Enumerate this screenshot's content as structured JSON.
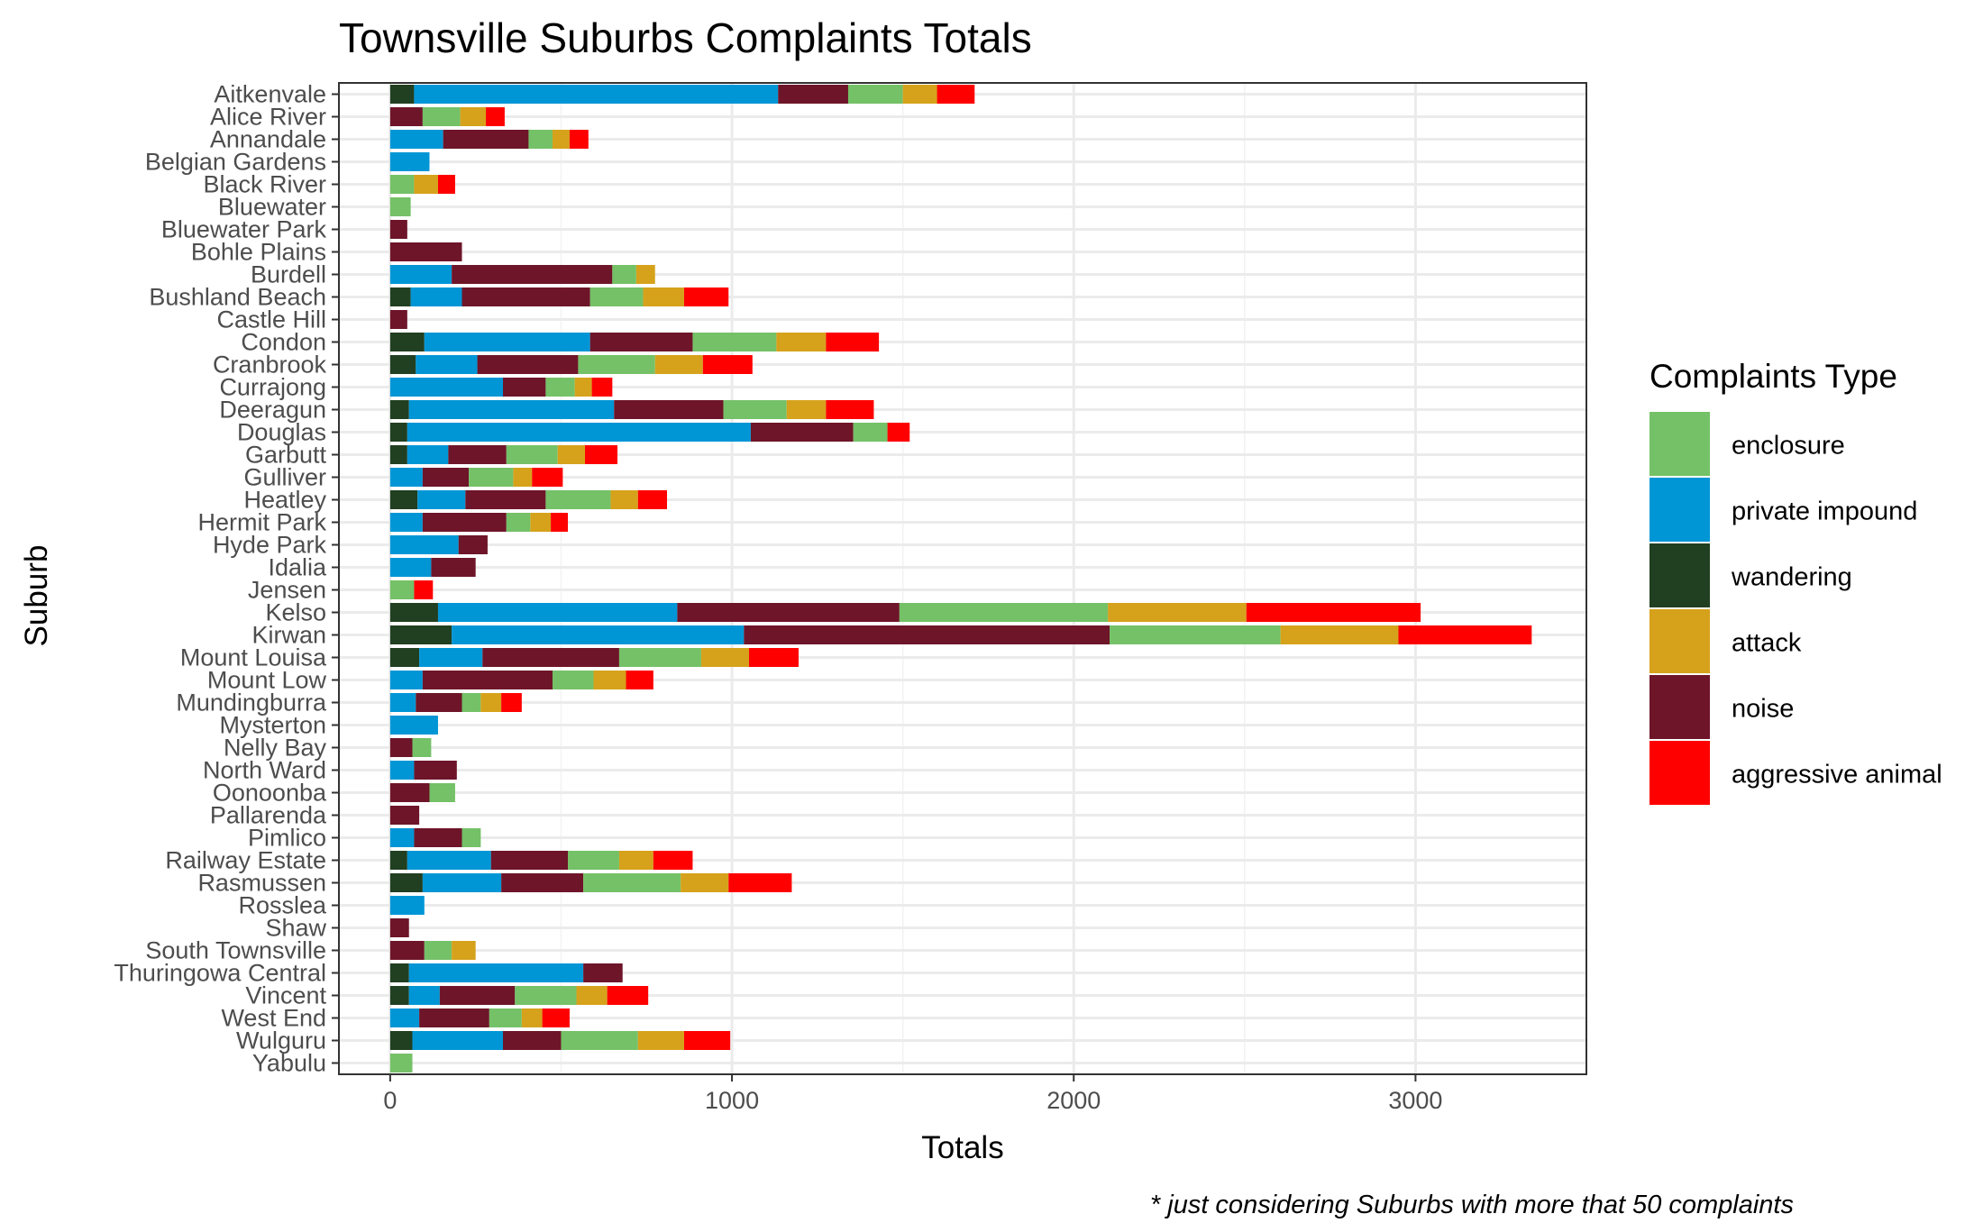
{
  "chart_data": {
    "type": "bar",
    "orientation": "horizontal",
    "stacked": true,
    "title": "Townsville Suburbs Complaints Totals",
    "xlabel": "Totals",
    "ylabel": "Suburb",
    "caption": "* just considering Suburbs with more that 50 complaints",
    "xlim": [
      -150,
      3500
    ],
    "xticks": [
      0,
      1000,
      2000,
      3000
    ],
    "grid": true,
    "legend": {
      "title": "Complaints Type",
      "placement": "right",
      "order": [
        "enclosure",
        "private impound",
        "wandering",
        "attack",
        "noise",
        "aggressive animal"
      ]
    },
    "stack_order": [
      "wandering",
      "private impound",
      "noise",
      "enclosure",
      "attack",
      "aggressive animal"
    ],
    "colors": {
      "enclosure": "#74c167",
      "private impound": "#0096d6",
      "wandering": "#213f21",
      "attack": "#d6a21b",
      "noise": "#6e1529",
      "aggressive animal": "#ff0000"
    },
    "categories": [
      "Aitkenvale",
      "Alice River",
      "Annandale",
      "Belgian Gardens",
      "Black River",
      "Bluewater",
      "Bluewater Park",
      "Bohle Plains",
      "Burdell",
      "Bushland Beach",
      "Castle Hill",
      "Condon",
      "Cranbrook",
      "Currajong",
      "Deeragun",
      "Douglas",
      "Garbutt",
      "Gulliver",
      "Heatley",
      "Hermit Park",
      "Hyde Park",
      "Idalia",
      "Jensen",
      "Kelso",
      "Kirwan",
      "Mount Louisa",
      "Mount Low",
      "Mundingburra",
      "Mysterton",
      "Nelly Bay",
      "North Ward",
      "Oonoonba",
      "Pallarenda",
      "Pimlico",
      "Railway Estate",
      "Rasmussen",
      "Rosslea",
      "Shaw",
      "South Townsville",
      "Thuringowa Central",
      "Vincent",
      "West End",
      "Wulguru",
      "Yabulu"
    ],
    "series": [
      {
        "name": "wandering",
        "values": [
          70,
          0,
          0,
          0,
          0,
          0,
          0,
          0,
          0,
          60,
          0,
          100,
          75,
          0,
          55,
          50,
          50,
          0,
          80,
          0,
          0,
          0,
          0,
          140,
          180,
          85,
          0,
          0,
          0,
          0,
          0,
          0,
          0,
          0,
          50,
          95,
          0,
          0,
          0,
          55,
          55,
          0,
          65,
          0
        ]
      },
      {
        "name": "private impound",
        "values": [
          1065,
          0,
          155,
          115,
          0,
          0,
          0,
          0,
          180,
          150,
          0,
          485,
          180,
          330,
          600,
          1005,
          120,
          95,
          140,
          95,
          200,
          120,
          0,
          700,
          855,
          185,
          95,
          75,
          140,
          0,
          70,
          0,
          0,
          70,
          245,
          230,
          100,
          0,
          0,
          510,
          90,
          85,
          265,
          0
        ]
      },
      {
        "name": "noise",
        "values": [
          205,
          95,
          250,
          0,
          0,
          0,
          50,
          210,
          470,
          375,
          50,
          300,
          295,
          125,
          320,
          300,
          170,
          135,
          235,
          245,
          85,
          130,
          0,
          650,
          1070,
          400,
          380,
          135,
          0,
          65,
          125,
          115,
          85,
          140,
          225,
          240,
          0,
          55,
          100,
          115,
          220,
          205,
          170,
          0
        ]
      },
      {
        "name": "enclosure",
        "values": [
          160,
          110,
          70,
          0,
          70,
          60,
          0,
          0,
          70,
          155,
          0,
          245,
          225,
          85,
          185,
          100,
          150,
          130,
          190,
          70,
          0,
          0,
          70,
          610,
          500,
          240,
          120,
          55,
          0,
          55,
          0,
          75,
          0,
          55,
          150,
          285,
          0,
          0,
          80,
          0,
          180,
          95,
          225,
          65
        ]
      },
      {
        "name": "attack",
        "values": [
          100,
          75,
          50,
          0,
          70,
          0,
          0,
          0,
          55,
          120,
          0,
          145,
          140,
          50,
          115,
          0,
          80,
          55,
          80,
          60,
          0,
          0,
          0,
          405,
          345,
          140,
          95,
          60,
          0,
          0,
          0,
          0,
          0,
          0,
          100,
          140,
          0,
          0,
          70,
          0,
          90,
          60,
          135,
          0
        ]
      },
      {
        "name": "aggressive animal",
        "values": [
          110,
          55,
          55,
          0,
          50,
          0,
          0,
          0,
          0,
          130,
          0,
          155,
          145,
          60,
          140,
          65,
          95,
          90,
          85,
          50,
          0,
          0,
          55,
          510,
          390,
          145,
          80,
          60,
          0,
          0,
          0,
          0,
          0,
          0,
          115,
          185,
          0,
          0,
          0,
          0,
          120,
          80,
          135,
          0
        ]
      }
    ]
  }
}
